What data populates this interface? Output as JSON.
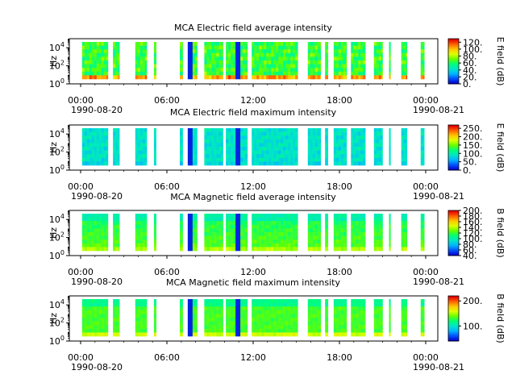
{
  "chart_data": [
    {
      "type": "heatmap",
      "title": "MCA  Electric field average intensity",
      "ylabel": "Hz",
      "y_scale": "log",
      "ylim": [
        1,
        100000
      ],
      "y_ticks": [
        {
          "base": "10",
          "exp": "0"
        },
        {
          "base": "10",
          "exp": "2"
        },
        {
          "base": "10",
          "exp": "4"
        }
      ],
      "x_ticks": [
        "00:00",
        "06:00",
        "12:00",
        "18:00",
        "00:00"
      ],
      "x_dates": {
        "start": "1990-08-20",
        "end": "1990-08-21"
      },
      "xlim": [
        "1990-08-20 00:00",
        "1990-08-21 00:00"
      ],
      "colorbar": {
        "label": "E field (dB)",
        "range": [
          0,
          130
        ],
        "ticks": [
          "0.",
          "20.",
          "40.",
          "60.",
          "80.",
          "100.",
          "120."
        ]
      }
    },
    {
      "type": "heatmap",
      "title": "MCA  Electric field maximum intensity",
      "ylabel": "Hz",
      "y_scale": "log",
      "ylim": [
        1,
        100000
      ],
      "y_ticks": [
        {
          "base": "10",
          "exp": "0"
        },
        {
          "base": "10",
          "exp": "2"
        },
        {
          "base": "10",
          "exp": "4"
        }
      ],
      "x_ticks": [
        "00:00",
        "06:00",
        "12:00",
        "18:00",
        "00:00"
      ],
      "x_dates": {
        "start": "1990-08-20",
        "end": "1990-08-21"
      },
      "xlim": [
        "1990-08-20 00:00",
        "1990-08-21 00:00"
      ],
      "colorbar": {
        "label": "E field (dB)",
        "range": [
          0,
          270
        ],
        "ticks": [
          "0.",
          "50.",
          "100.",
          "150.",
          "200.",
          "250."
        ]
      }
    },
    {
      "type": "heatmap",
      "title": "MCA  Magnetic field average intensity",
      "ylabel": "Hz",
      "y_scale": "log",
      "ylim": [
        1,
        100000
      ],
      "y_ticks": [
        {
          "base": "10",
          "exp": "0"
        },
        {
          "base": "10",
          "exp": "2"
        },
        {
          "base": "10",
          "exp": "4"
        }
      ],
      "x_ticks": [
        "00:00",
        "06:00",
        "12:00",
        "18:00",
        "00:00"
      ],
      "x_dates": {
        "start": "1990-08-20",
        "end": "1990-08-21"
      },
      "xlim": [
        "1990-08-20 00:00",
        "1990-08-21 00:00"
      ],
      "colorbar": {
        "label": "B field (dB)",
        "range": [
          40,
          200
        ],
        "ticks": [
          "40.",
          "60.",
          "80.",
          "100.",
          "120.",
          "140.",
          "160.",
          "180.",
          "200."
        ]
      }
    },
    {
      "type": "heatmap",
      "title": "MCA  Magnetic field maximum intensity",
      "ylabel": "Hz",
      "y_scale": "log",
      "ylim": [
        1,
        100000
      ],
      "y_ticks": [
        {
          "base": "10",
          "exp": "0"
        },
        {
          "base": "10",
          "exp": "2"
        },
        {
          "base": "10",
          "exp": "4"
        }
      ],
      "x_ticks": [
        "00:00",
        "06:00",
        "12:00",
        "18:00",
        "00:00"
      ],
      "x_dates": {
        "start": "1990-08-20",
        "end": "1990-08-21"
      },
      "xlim": [
        "1990-08-20 00:00",
        "1990-08-21 00:00"
      ],
      "colorbar": {
        "label": "B field (dB)",
        "range": [
          40,
          220
        ],
        "ticks": [
          "100.",
          "200."
        ]
      }
    }
  ],
  "colormap": [
    "#0000c8",
    "#0050ff",
    "#00b4ff",
    "#00e6c8",
    "#00ff78",
    "#64ff00",
    "#dcff00",
    "#ffc800",
    "#ff6400",
    "#e60000"
  ],
  "data_segments_hours": [
    [
      0.1,
      1.9
    ],
    [
      2.25,
      2.7
    ],
    [
      3.8,
      4.6
    ],
    [
      5.1,
      5.25
    ],
    [
      6.9,
      7.1
    ],
    [
      7.45,
      8.1
    ],
    [
      8.6,
      9.9
    ],
    [
      10.1,
      11.6
    ],
    [
      11.9,
      15.1
    ],
    [
      15.8,
      16.7
    ],
    [
      17.0,
      17.2
    ],
    [
      17.6,
      18.5
    ],
    [
      18.8,
      19.8
    ],
    [
      20.4,
      21.0
    ],
    [
      21.45,
      21.55
    ],
    [
      22.3,
      22.7
    ],
    [
      23.65,
      23.9
    ]
  ]
}
